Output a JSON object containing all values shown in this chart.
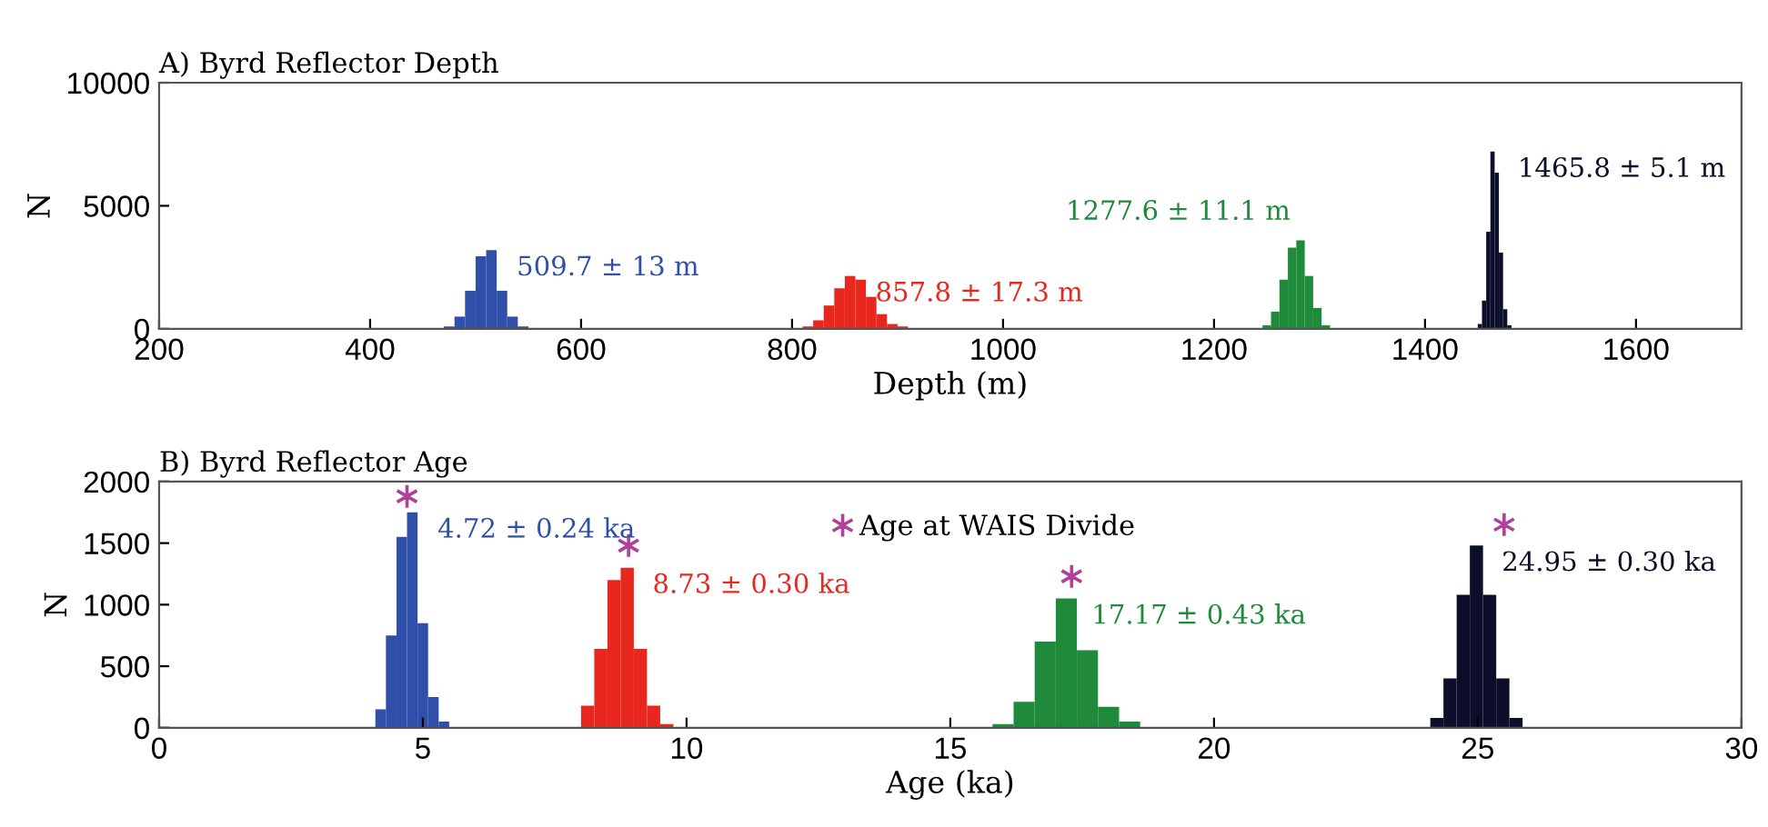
{
  "chart_data": [
    {
      "type": "bar",
      "title": "A) Byrd Reflector Depth",
      "xlabel": "Depth (m)",
      "ylabel": "N",
      "xlim": [
        200,
        1700
      ],
      "xticks": [
        200,
        400,
        600,
        800,
        1000,
        1200,
        1400,
        1600
      ],
      "ylim": [
        0,
        10000
      ],
      "yticks": [
        0,
        5000,
        10000
      ],
      "grid": false,
      "legend": false,
      "series": [
        {
          "color": "#2f4fa8",
          "x": [
            475,
            485,
            495,
            505,
            515,
            525,
            535,
            545
          ],
          "values": [
            100,
            500,
            1550,
            2950,
            3200,
            1550,
            500,
            100
          ]
        },
        {
          "color": "#e8281e",
          "x": [
            815,
            825,
            835,
            845,
            855,
            865,
            875,
            885,
            895,
            905
          ],
          "values": [
            100,
            350,
            950,
            1650,
            2150,
            2000,
            1300,
            600,
            200,
            100
          ]
        },
        {
          "color": "#1f8a3a",
          "x": [
            1250,
            1258,
            1266,
            1274,
            1282,
            1290,
            1298,
            1306
          ],
          "values": [
            150,
            700,
            2000,
            3300,
            3600,
            2150,
            850,
            150
          ]
        },
        {
          "color": "#0d0f2a",
          "x": [
            1452,
            1456,
            1460,
            1464,
            1468,
            1472,
            1476,
            1480
          ],
          "values": [
            200,
            1150,
            3950,
            7200,
            6350,
            3100,
            800,
            150
          ]
        }
      ],
      "annotations": [
        "509.7 ± 13 m",
        "857.8 ± 17.3 m",
        "1277.6 ± 11.1 m",
        "1465.8 ± 5.1 m"
      ]
    },
    {
      "type": "bar",
      "title": "B) Byrd Reflector Age",
      "xlabel": "Age (ka)",
      "ylabel": "N",
      "xlim": [
        0,
        30
      ],
      "xticks": [
        0,
        5,
        10,
        15,
        20,
        25,
        30
      ],
      "ylim": [
        0,
        2000
      ],
      "yticks": [
        0,
        500,
        1000,
        1500,
        2000
      ],
      "grid": false,
      "legend": "top",
      "series": [
        {
          "color": "#2f4fa8",
          "x": [
            4.2,
            4.4,
            4.6,
            4.8,
            5.0,
            5.2,
            5.4
          ],
          "values": [
            150,
            750,
            1550,
            1750,
            850,
            250,
            50
          ]
        },
        {
          "color": "#e8281e",
          "x": [
            8.125,
            8.375,
            8.625,
            8.875,
            9.125,
            9.375,
            9.625
          ],
          "values": [
            180,
            640,
            1200,
            1300,
            640,
            180,
            30
          ]
        },
        {
          "color": "#1f8a3a",
          "x": [
            16.0,
            16.4,
            16.8,
            17.2,
            17.6,
            18.0,
            18.4
          ],
          "values": [
            30,
            210,
            700,
            1050,
            630,
            170,
            50
          ]
        },
        {
          "color": "#0d0f2a",
          "x": [
            24.225,
            24.475,
            24.725,
            24.975,
            25.225,
            25.475,
            25.725
          ],
          "values": [
            80,
            400,
            1080,
            1480,
            1080,
            400,
            80
          ]
        },
        {
          "type": "scatter",
          "name": "Age at WAIS Divide",
          "color": "#b0409a",
          "marker": "cross",
          "x": [
            4.7,
            8.9,
            17.3,
            25.5
          ],
          "values": [
            1880,
            1480,
            1230,
            1650
          ]
        }
      ],
      "annotations": [
        "4.72 ± 0.24 ka",
        "8.73 ± 0.30 ka",
        "17.17 ± 0.43 ka",
        "24.95 ± 0.30 ka"
      ]
    }
  ]
}
